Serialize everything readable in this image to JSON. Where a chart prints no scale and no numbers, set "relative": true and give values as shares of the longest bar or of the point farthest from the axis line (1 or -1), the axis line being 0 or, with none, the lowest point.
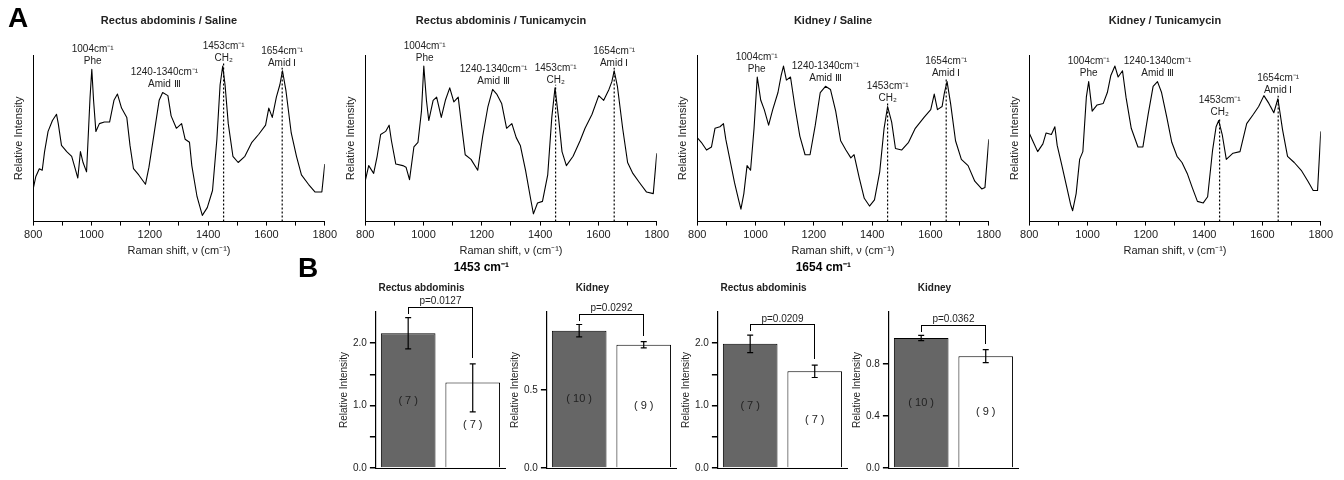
{
  "chart_data": [
    {
      "type": "line",
      "title": "Rectus abdominis / Saline",
      "xlabel": "Raman shift, ν (cm⁻¹)",
      "ylabel": "Relative Intensity",
      "relative": true,
      "tick_labels": "x",
      "marker": "none",
      "color": "#000000",
      "xlim": [
        800,
        1800
      ],
      "xticks": [
        800,
        {
          "value": 900,
          "label": null
        },
        1000,
        {
          "value": 1100,
          "label": null
        },
        1200,
        {
          "value": 1300,
          "label": null
        },
        1400,
        {
          "value": 1500,
          "label": null
        },
        1600,
        {
          "value": 1700,
          "label": null
        },
        1800
      ],
      "x": [
        800,
        809,
        821,
        831,
        839,
        851,
        866,
        880,
        886,
        897,
        915,
        932,
        944,
        953,
        962,
        971,
        983,
        995,
        1001,
        1007,
        1015,
        1027,
        1044,
        1062,
        1077,
        1089,
        1103,
        1121,
        1132,
        1144,
        1162,
        1185,
        1197,
        1215,
        1232,
        1244,
        1262,
        1273,
        1291,
        1309,
        1321,
        1336,
        1344,
        1362,
        1380,
        1397,
        1415,
        1430,
        1441,
        1450,
        1458,
        1469,
        1485,
        1503,
        1526,
        1550,
        1573,
        1597,
        1608,
        1620,
        1634,
        1646,
        1655,
        1667,
        1685,
        1703,
        1720,
        1744,
        1767,
        1790,
        1800
      ],
      "values": [
        0.21,
        0.29,
        0.34,
        0.33,
        0.45,
        0.58,
        0.65,
        0.69,
        0.63,
        0.49,
        0.45,
        0.42,
        0.34,
        0.28,
        0.45,
        0.38,
        0.32,
        0.8,
        0.98,
        0.78,
        0.58,
        0.63,
        0.64,
        0.64,
        0.78,
        0.82,
        0.73,
        0.67,
        0.49,
        0.34,
        0.3,
        0.24,
        0.35,
        0.57,
        0.78,
        0.83,
        0.81,
        0.68,
        0.6,
        0.63,
        0.53,
        0.51,
        0.36,
        0.16,
        0.04,
        0.09,
        0.2,
        0.53,
        0.88,
        1.0,
        0.88,
        0.63,
        0.42,
        0.38,
        0.42,
        0.51,
        0.56,
        0.62,
        0.73,
        0.67,
        0.8,
        0.88,
        0.97,
        0.84,
        0.57,
        0.42,
        0.3,
        0.24,
        0.19,
        0.19,
        0.37
      ],
      "ref_lines": [
        {
          "axis": "x",
          "value": 1453,
          "line_style": "dotted"
        },
        {
          "axis": "x",
          "value": 1654,
          "line_style": "dotted"
        }
      ],
      "annotations": [
        "A",
        {
          "text": "1004cm⁻¹\nPhe",
          "x": 1004,
          "y": 0.98
        },
        {
          "text": "1240-1340cm⁻¹\nAmid Ⅲ",
          "x": 1250,
          "y": 0.83
        },
        {
          "text": "1453cm⁻¹\nCH₂",
          "x": 1453,
          "y": 1.0
        },
        {
          "text": "1654cm⁻¹\nAmid Ⅰ",
          "x": 1654,
          "y": 0.97
        }
      ]
    },
    {
      "type": "line",
      "title": "Rectus abdominis / Tunicamycin",
      "xlabel": "Raman shift, ν (cm⁻¹)",
      "ylabel": "Relative Intensity",
      "relative": true,
      "tick_labels": "x",
      "marker": "none",
      "color": "#000000",
      "xlim": [
        800,
        1800
      ],
      "xticks": [
        800,
        {
          "value": 900,
          "label": null
        },
        1000,
        {
          "value": 1100,
          "label": null
        },
        1200,
        {
          "value": 1300,
          "label": null
        },
        1400,
        {
          "value": 1500,
          "label": null
        },
        1600,
        {
          "value": 1700,
          "label": null
        },
        1800
      ],
      "x": [
        800,
        812,
        829,
        841,
        853,
        870,
        882,
        890,
        905,
        929,
        940,
        952,
        967,
        981,
        993,
        1001,
        1010,
        1018,
        1033,
        1045,
        1061,
        1075,
        1090,
        1104,
        1119,
        1133,
        1143,
        1163,
        1186,
        1203,
        1221,
        1237,
        1251,
        1268,
        1285,
        1303,
        1318,
        1332,
        1350,
        1367,
        1377,
        1391,
        1408,
        1426,
        1440,
        1451,
        1463,
        1475,
        1490,
        1513,
        1537,
        1554,
        1578,
        1601,
        1618,
        1636,
        1646,
        1654,
        1665,
        1683,
        1700,
        1718,
        1741,
        1765,
        1788,
        1800
      ],
      "values": [
        0.26,
        0.36,
        0.31,
        0.42,
        0.56,
        0.58,
        0.62,
        0.52,
        0.37,
        0.36,
        0.35,
        0.27,
        0.48,
        0.51,
        0.71,
        1.0,
        0.78,
        0.65,
        0.78,
        0.8,
        0.67,
        0.78,
        0.86,
        0.77,
        0.8,
        0.58,
        0.43,
        0.4,
        0.33,
        0.55,
        0.74,
        0.85,
        0.82,
        0.76,
        0.6,
        0.63,
        0.54,
        0.49,
        0.33,
        0.15,
        0.05,
        0.12,
        0.13,
        0.3,
        0.67,
        0.86,
        0.67,
        0.45,
        0.36,
        0.42,
        0.52,
        0.6,
        0.69,
        0.81,
        0.78,
        0.85,
        0.9,
        0.97,
        0.87,
        0.6,
        0.38,
        0.31,
        0.25,
        0.19,
        0.18,
        0.44
      ],
      "ref_lines": [
        {
          "axis": "x",
          "value": 1453,
          "line_style": "dotted"
        },
        {
          "axis": "x",
          "value": 1654,
          "line_style": "dotted"
        }
      ],
      "annotations": [
        {
          "text": "1004cm⁻¹\nPhe",
          "x": 1004,
          "y": 1.0
        },
        {
          "text": "1240-1340cm⁻¹\nAmid Ⅲ",
          "x": 1240,
          "y": 0.85
        },
        {
          "text": "1453cm⁻¹\nCH₂",
          "x": 1453,
          "y": 0.86
        },
        {
          "text": "1654cm⁻¹\nAmid Ⅰ",
          "x": 1654,
          "y": 0.97
        }
      ]
    },
    {
      "type": "line",
      "title": "Kidney / Saline",
      "xlabel": "Raman shift, ν (cm⁻¹)",
      "ylabel": "Relative Intensity",
      "relative": true,
      "tick_labels": "x",
      "marker": "none",
      "color": "#000000",
      "xlim": [
        800,
        1800
      ],
      "xticks": [
        800,
        {
          "value": 900,
          "label": null
        },
        1000,
        {
          "value": 1100,
          "label": null
        },
        1200,
        {
          "value": 1300,
          "label": null
        },
        1400,
        {
          "value": 1500,
          "label": null
        },
        1600,
        {
          "value": 1700,
          "label": null
        },
        1800
      ],
      "x": [
        800,
        814,
        832,
        849,
        861,
        878,
        890,
        898,
        913,
        928,
        942,
        950,
        960,
        971,
        983,
        995,
        1006,
        1018,
        1030,
        1045,
        1059,
        1077,
        1088,
        1096,
        1106,
        1120,
        1135,
        1152,
        1170,
        1187,
        1205,
        1222,
        1240,
        1257,
        1275,
        1292,
        1310,
        1327,
        1338,
        1356,
        1373,
        1391,
        1408,
        1426,
        1441,
        1453,
        1467,
        1480,
        1501,
        1525,
        1548,
        1578,
        1601,
        1613,
        1624,
        1640,
        1648,
        1657,
        1669,
        1686,
        1706,
        1729,
        1752,
        1776,
        1787,
        1800
      ],
      "values": [
        0.54,
        0.51,
        0.46,
        0.48,
        0.6,
        0.61,
        0.63,
        0.53,
        0.39,
        0.25,
        0.14,
        0.08,
        0.18,
        0.36,
        0.33,
        0.6,
        0.93,
        0.78,
        0.72,
        0.62,
        0.72,
        0.83,
        0.94,
        1.0,
        0.91,
        0.93,
        0.74,
        0.55,
        0.43,
        0.43,
        0.62,
        0.83,
        0.87,
        0.85,
        0.71,
        0.52,
        0.46,
        0.41,
        0.43,
        0.28,
        0.15,
        0.1,
        0.14,
        0.32,
        0.6,
        0.74,
        0.64,
        0.47,
        0.46,
        0.51,
        0.6,
        0.67,
        0.72,
        0.82,
        0.72,
        0.74,
        0.83,
        0.9,
        0.76,
        0.52,
        0.4,
        0.36,
        0.26,
        0.21,
        0.22,
        0.53
      ],
      "ref_lines": [
        {
          "axis": "x",
          "value": 1453,
          "line_style": "dotted"
        },
        {
          "axis": "x",
          "value": 1654,
          "line_style": "dotted"
        }
      ],
      "annotations": [
        {
          "text": "1004cm⁻¹\nPhe",
          "x": 1004,
          "y": 0.93
        },
        {
          "text": "1240-1340cm⁻¹\nAmid Ⅲ",
          "x": 1240,
          "y": 0.87
        },
        {
          "text": "1453cm⁻¹\nCH₂",
          "x": 1453,
          "y": 0.74
        },
        {
          "text": "1654cm⁻¹\nAmid Ⅰ",
          "x": 1654,
          "y": 0.9
        }
      ]
    },
    {
      "type": "line",
      "title": "Kidney / Tunicamycin",
      "xlabel": "Raman shift, ν (cm⁻¹)",
      "ylabel": "Relative Intensity",
      "relative": true,
      "tick_labels": "x",
      "marker": "none",
      "color": "#000000",
      "xlim": [
        800,
        1800
      ],
      "xticks": [
        800,
        {
          "value": 900,
          "label": null
        },
        1000,
        {
          "value": 1100,
          "label": null
        },
        1200,
        {
          "value": 1300,
          "label": null
        },
        1400,
        {
          "value": 1500,
          "label": null
        },
        1600,
        {
          "value": 1700,
          "label": null
        },
        1800
      ],
      "x": [
        800,
        812,
        829,
        847,
        858,
        876,
        888,
        896,
        911,
        929,
        942,
        949,
        961,
        973,
        984,
        996,
        1004,
        1016,
        1033,
        1054,
        1068,
        1080,
        1094,
        1105,
        1120,
        1132,
        1150,
        1173,
        1190,
        1208,
        1225,
        1240,
        1254,
        1272,
        1289,
        1307,
        1324,
        1342,
        1359,
        1377,
        1397,
        1412,
        1429,
        1441,
        1450,
        1462,
        1476,
        1499,
        1523,
        1546,
        1569,
        1587,
        1605,
        1622,
        1639,
        1653,
        1669,
        1686,
        1709,
        1733,
        1756,
        1774,
        1789,
        1800
      ],
      "values": [
        0.57,
        0.52,
        0.45,
        0.5,
        0.57,
        0.56,
        0.61,
        0.49,
        0.37,
        0.22,
        0.11,
        0.07,
        0.18,
        0.4,
        0.45,
        0.8,
        0.9,
        0.71,
        0.75,
        0.76,
        0.83,
        0.94,
        1.0,
        0.93,
        0.97,
        0.8,
        0.6,
        0.48,
        0.48,
        0.69,
        0.87,
        0.9,
        0.83,
        0.67,
        0.51,
        0.42,
        0.38,
        0.31,
        0.22,
        0.13,
        0.12,
        0.16,
        0.46,
        0.61,
        0.65,
        0.56,
        0.4,
        0.44,
        0.45,
        0.63,
        0.69,
        0.74,
        0.81,
        0.76,
        0.7,
        0.79,
        0.59,
        0.42,
        0.38,
        0.33,
        0.26,
        0.2,
        0.2,
        0.58
      ],
      "ref_lines": [
        {
          "axis": "x",
          "value": 1453,
          "line_style": "dotted"
        },
        {
          "axis": "x",
          "value": 1654,
          "line_style": "dotted"
        }
      ],
      "annotations": [
        {
          "text": "1004cm⁻¹\nPhe",
          "x": 1004,
          "y": 0.9
        },
        {
          "text": "1240-1340cm⁻¹\nAmid Ⅲ",
          "x": 1240,
          "y": 0.9
        },
        {
          "text": "1453cm⁻¹\nCH₂",
          "x": 1453,
          "y": 0.65
        },
        {
          "text": "1654cm⁻¹\nAmid Ⅰ",
          "x": 1654,
          "y": 0.79
        }
      ]
    },
    {
      "type": "bar",
      "title": "Rectus abdominis",
      "subtitle": "1453 cm⁻¹",
      "ylabel": "Relative Intensity",
      "categories": [
        null,
        null
      ],
      "values": [
        2.16,
        1.37
      ],
      "colors": [
        "#666666",
        "#ffffff"
      ],
      "errors": [
        0.25,
        [
          0.9,
          1.67
        ]
      ],
      "ylim": [
        0,
        2.5
      ],
      "yticks": [
        {
          "value": 0,
          "label": "0.0"
        },
        {
          "value": 0.5,
          "label": null
        },
        {
          "value": 1,
          "label": "1.0"
        },
        {
          "value": 1.5,
          "label": null
        },
        {
          "value": 2,
          "label": "2.0"
        }
      ],
      "annotations": [
        "p=0.0127",
        "( 7 )",
        "( 7 )",
        "B"
      ]
    },
    {
      "type": "bar",
      "title": "Kidney",
      "ylabel": "Relative Intensity",
      "categories": [
        null,
        null
      ],
      "values": [
        0.88,
        0.79
      ],
      "colors": [
        "#666666",
        "#ffffff"
      ],
      "errors": [
        0.04,
        0.02
      ],
      "ylim": [
        0,
        1.0
      ],
      "yticks": [
        {
          "value": 0,
          "label": "0.0"
        },
        0.5
      ],
      "annotations": [
        "p=0.0292",
        "( 10 )",
        "( 9 )"
      ]
    },
    {
      "type": "bar",
      "title": "Rectus abdominis",
      "subtitle": "1654 cm⁻¹",
      "ylabel": "Relative Intensity",
      "categories": [
        null,
        null
      ],
      "values": [
        1.99,
        1.55
      ],
      "colors": [
        "#666666",
        "#ffffff"
      ],
      "errors": [
        0.14,
        0.1
      ],
      "ylim": [
        0,
        2.5
      ],
      "yticks": [
        {
          "value": 0,
          "label": "0.0"
        },
        {
          "value": 0.5,
          "label": null
        },
        {
          "value": 1,
          "label": "1.0"
        },
        {
          "value": 1.5,
          "label": null
        },
        {
          "value": 2,
          "label": "2.0"
        }
      ],
      "annotations": [
        "p=0.0209",
        "( 7 )",
        "( 7 )"
      ]
    },
    {
      "type": "bar",
      "title": "Kidney",
      "ylabel": "Relative Intensity",
      "categories": [
        null,
        null
      ],
      "values": [
        1.0,
        0.86
      ],
      "colors": [
        "#666666",
        "#ffffff"
      ],
      "errors": [
        0.02,
        0.05
      ],
      "ylim": [
        0,
        1.2
      ],
      "yticks": [
        {
          "value": 0,
          "label": "0.0"
        },
        0.4,
        0.8
      ],
      "annotations": [
        "p=0.0362",
        "( 10 )",
        "( 9 )"
      ]
    }
  ]
}
